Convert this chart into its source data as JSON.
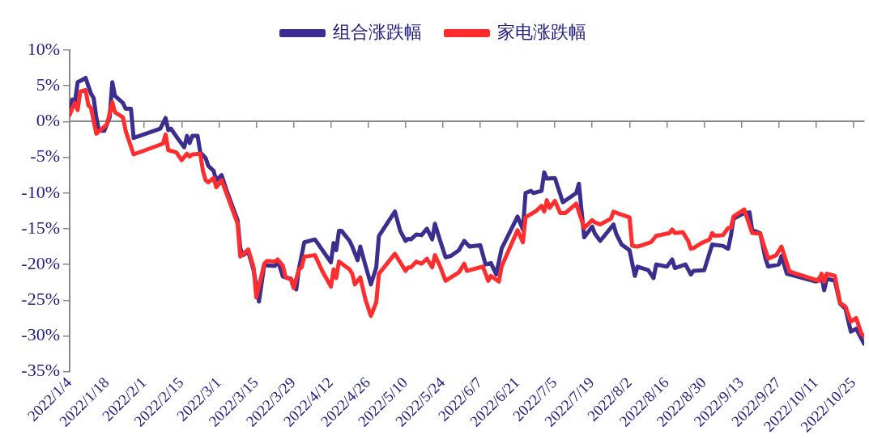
{
  "chart_data": {
    "type": "line",
    "legend": "top",
    "marker": "none",
    "line_style": "solid",
    "xlim": [
      "2022-01-04",
      "2022-10-29"
    ],
    "xticks": [
      {
        "value": "2022-01-04",
        "label": "2022/1/4"
      },
      {
        "value": "2022-01-18",
        "label": "2022/1/18"
      },
      {
        "value": "2022-02-01",
        "label": "2022/2/1"
      },
      {
        "value": "2022-02-15",
        "label": "2022/2/15"
      },
      {
        "value": "2022-03-01",
        "label": "2022/3/1"
      },
      {
        "value": "2022-03-15",
        "label": "2022/3/15"
      },
      {
        "value": "2022-03-29",
        "label": "2022/3/29"
      },
      {
        "value": "2022-04-12",
        "label": "2022/4/12"
      },
      {
        "value": "2022-04-26",
        "label": "2022/4/26"
      },
      {
        "value": "2022-05-10",
        "label": "2022/5/10"
      },
      {
        "value": "2022-05-24",
        "label": "2022/5/24"
      },
      {
        "value": "2022-06-07",
        "label": "2022/6/7"
      },
      {
        "value": "2022-06-21",
        "label": "2022/6/21"
      },
      {
        "value": "2022-07-05",
        "label": "2022/7/5"
      },
      {
        "value": "2022-07-19",
        "label": "2022/7/19"
      },
      {
        "value": "2022-08-02",
        "label": "2022/8/2"
      },
      {
        "value": "2022-08-16",
        "label": "2022/8/16"
      },
      {
        "value": "2022-08-30",
        "label": "2022/8/30"
      },
      {
        "value": "2022-09-13",
        "label": "2022/9/13"
      },
      {
        "value": "2022-09-27",
        "label": "2022/9/27"
      },
      {
        "value": "2022-10-11",
        "label": "2022/10/11"
      },
      {
        "value": "2022-10-25",
        "label": "2022/10/25"
      }
    ],
    "ylim": [
      -35,
      10
    ],
    "yticks": [
      {
        "value": -35,
        "label": "-35%"
      },
      {
        "value": -30,
        "label": "-30%"
      },
      {
        "value": -25,
        "label": "-25%"
      },
      {
        "value": -20,
        "label": "-20%"
      },
      {
        "value": -15,
        "label": "-15%"
      },
      {
        "value": -10,
        "label": "-10%"
      },
      {
        "value": -5,
        "label": "-5%"
      },
      {
        "value": 0,
        "label": "0%"
      },
      {
        "value": 5,
        "label": "5%"
      },
      {
        "value": 10,
        "label": "10%"
      }
    ],
    "series": [
      {
        "name": "组合涨跌幅",
        "color": "#3b2e8f",
        "x": [
          "2022-01-04",
          "2022-01-05",
          "2022-01-06",
          "2022-01-07",
          "2022-01-10",
          "2022-01-12",
          "2022-01-13",
          "2022-01-14",
          "2022-01-15",
          "2022-01-17",
          "2022-01-19",
          "2022-01-20",
          "2022-01-21",
          "2022-01-24",
          "2022-01-25",
          "2022-01-27",
          "2022-01-28",
          "2022-02-07",
          "2022-02-09",
          "2022-02-10",
          "2022-02-11",
          "2022-02-14",
          "2022-02-16",
          "2022-02-17",
          "2022-02-18",
          "2022-02-19",
          "2022-02-21",
          "2022-02-22",
          "2022-02-24",
          "2022-02-25",
          "2022-02-27",
          "2022-02-28",
          "2022-03-02",
          "2022-03-04",
          "2022-03-08",
          "2022-03-09",
          "2022-03-10",
          "2022-03-12",
          "2022-03-14",
          "2022-03-16",
          "2022-03-18",
          "2022-03-22",
          "2022-03-23",
          "2022-03-25",
          "2022-03-28",
          "2022-03-30",
          "2022-03-31",
          "2022-04-02",
          "2022-04-06",
          "2022-04-12",
          "2022-04-13",
          "2022-04-14",
          "2022-04-15",
          "2022-04-16",
          "2022-04-19",
          "2022-04-20",
          "2022-04-22",
          "2022-04-23",
          "2022-04-25",
          "2022-04-27",
          "2022-04-29",
          "2022-04-30",
          "2022-05-06",
          "2022-05-08",
          "2022-05-10",
          "2022-05-11",
          "2022-05-12",
          "2022-05-14",
          "2022-05-16",
          "2022-05-18",
          "2022-05-20",
          "2022-05-21",
          "2022-05-23",
          "2022-05-25",
          "2022-05-27",
          "2022-05-30",
          "2022-06-01",
          "2022-06-03",
          "2022-06-07",
          "2022-06-09",
          "2022-06-11",
          "2022-06-13",
          "2022-06-15",
          "2022-06-21",
          "2022-06-23",
          "2022-06-24",
          "2022-06-26",
          "2022-06-27",
          "2022-06-30",
          "2022-07-01",
          "2022-07-02",
          "2022-07-05",
          "2022-07-08",
          "2022-07-13",
          "2022-07-14",
          "2022-07-16",
          "2022-07-19",
          "2022-07-20",
          "2022-07-22",
          "2022-07-27",
          "2022-07-28",
          "2022-07-30",
          "2022-08-02",
          "2022-08-04",
          "2022-08-05",
          "2022-08-09",
          "2022-08-11",
          "2022-08-12",
          "2022-08-16",
          "2022-08-18",
          "2022-08-19",
          "2022-08-23",
          "2022-08-25",
          "2022-08-26",
          "2022-08-30",
          "2022-09-02",
          "2022-09-06",
          "2022-09-08",
          "2022-09-09",
          "2022-09-10",
          "2022-09-14",
          "2022-09-16",
          "2022-09-17",
          "2022-09-20",
          "2022-09-22",
          "2022-09-23",
          "2022-09-27",
          "2022-09-28",
          "2022-09-30",
          "2022-10-11",
          "2022-10-13",
          "2022-10-14",
          "2022-10-15",
          "2022-10-18",
          "2022-10-20",
          "2022-10-22",
          "2022-10-24",
          "2022-10-26",
          "2022-10-28",
          "2022-10-29"
        ],
        "values": [
          1.1,
          3.1,
          2.8,
          5.5,
          6.1,
          3.9,
          3.3,
          0.6,
          -1.3,
          -1.3,
          0.6,
          5.5,
          3.6,
          2.6,
          1.8,
          1.8,
          -2.3,
          -1.0,
          0.5,
          -1.2,
          -1.0,
          -2.6,
          -3.6,
          -2.0,
          -3.0,
          -2.0,
          -2.0,
          -4.3,
          -5.1,
          -6.2,
          -6.9,
          -8.2,
          -7.5,
          -9.8,
          -13.8,
          -17.7,
          -18.7,
          -18.2,
          -20.8,
          -25.2,
          -20.1,
          -20.2,
          -19.4,
          -21.7,
          -22.0,
          -23.5,
          -20.6,
          -16.9,
          -16.5,
          -19.7,
          -17.0,
          -18.0,
          -15.3,
          -15.3,
          -16.7,
          -17.5,
          -19.4,
          -17.5,
          -20.2,
          -22.8,
          -20.4,
          -16.0,
          -12.6,
          -15.3,
          -16.7,
          -16.4,
          -16.5,
          -15.8,
          -15.9,
          -15.0,
          -16.5,
          -14.3,
          -16.7,
          -19.0,
          -18.8,
          -18.0,
          -16.7,
          -17.5,
          -17.3,
          -20.0,
          -19.8,
          -21.4,
          -17.8,
          -13.3,
          -15.1,
          -10.0,
          -9.7,
          -10.0,
          -9.7,
          -7.1,
          -8.0,
          -7.9,
          -11.3,
          -10.0,
          -8.7,
          -16.2,
          -14.7,
          -15.7,
          -16.7,
          -14.4,
          -15.7,
          -17.2,
          -18.0,
          -21.6,
          -20.3,
          -20.8,
          -21.9,
          -20.0,
          -20.3,
          -19.3,
          -20.5,
          -20.0,
          -21.4,
          -20.9,
          -20.8,
          -17.2,
          -17.4,
          -17.8,
          -16.0,
          -13.6,
          -12.8,
          -12.7,
          -15.2,
          -15.6,
          -19.2,
          -20.3,
          -20.0,
          -18.8,
          -21.3,
          -22.4,
          -21.6,
          -23.6,
          -22.0,
          -22.3,
          -25.5,
          -26.2,
          -29.4,
          -29.0,
          -30.4,
          -31.1
        ]
      },
      {
        "name": "家电涨跌幅",
        "color": "#ff2d2d",
        "x": [
          "2022-01-04",
          "2022-01-05",
          "2022-01-06",
          "2022-01-07",
          "2022-01-08",
          "2022-01-10",
          "2022-01-11",
          "2022-01-12",
          "2022-01-14",
          "2022-01-18",
          "2022-01-20",
          "2022-01-21",
          "2022-01-24",
          "2022-01-25",
          "2022-01-28",
          "2022-02-08",
          "2022-02-09",
          "2022-02-10",
          "2022-02-13",
          "2022-02-15",
          "2022-02-17",
          "2022-02-18",
          "2022-02-19",
          "2022-02-22",
          "2022-02-23",
          "2022-02-24",
          "2022-02-25",
          "2022-02-27",
          "2022-02-28",
          "2022-03-02",
          "2022-03-08",
          "2022-03-09",
          "2022-03-12",
          "2022-03-14",
          "2022-03-15",
          "2022-03-18",
          "2022-03-19",
          "2022-03-22",
          "2022-03-23",
          "2022-03-25",
          "2022-03-26",
          "2022-03-28",
          "2022-03-29",
          "2022-03-31",
          "2022-04-01",
          "2022-04-02",
          "2022-04-06",
          "2022-04-09",
          "2022-04-12",
          "2022-04-13",
          "2022-04-14",
          "2022-04-15",
          "2022-04-19",
          "2022-04-20",
          "2022-04-21",
          "2022-04-23",
          "2022-04-25",
          "2022-04-27",
          "2022-04-29",
          "2022-04-30",
          "2022-05-06",
          "2022-05-08",
          "2022-05-10",
          "2022-05-11",
          "2022-05-12",
          "2022-05-14",
          "2022-05-16",
          "2022-05-18",
          "2022-05-20",
          "2022-05-21",
          "2022-05-23",
          "2022-05-25",
          "2022-05-27",
          "2022-05-30",
          "2022-06-01",
          "2022-06-02",
          "2022-06-08",
          "2022-06-10",
          "2022-06-11",
          "2022-06-14",
          "2022-06-15",
          "2022-06-21",
          "2022-06-23",
          "2022-06-24",
          "2022-06-28",
          "2022-06-30",
          "2022-07-01",
          "2022-07-02",
          "2022-07-03",
          "2022-07-05",
          "2022-07-07",
          "2022-07-09",
          "2022-07-13",
          "2022-07-16",
          "2022-07-19",
          "2022-07-20",
          "2022-07-22",
          "2022-07-26",
          "2022-07-27",
          "2022-07-29",
          "2022-08-02",
          "2022-08-03",
          "2022-08-05",
          "2022-08-10",
          "2022-08-12",
          "2022-08-17",
          "2022-08-18",
          "2022-08-19",
          "2022-08-22",
          "2022-08-24",
          "2022-08-25",
          "2022-08-26",
          "2022-08-29",
          "2022-09-01",
          "2022-09-02",
          "2022-09-03",
          "2022-09-06",
          "2022-09-08",
          "2022-09-09",
          "2022-09-10",
          "2022-09-14",
          "2022-09-17",
          "2022-09-20",
          "2022-09-23",
          "2022-09-26",
          "2022-09-28",
          "2022-10-01",
          "2022-10-12",
          "2022-10-13",
          "2022-10-14",
          "2022-10-15",
          "2022-10-18",
          "2022-10-20",
          "2022-10-22",
          "2022-10-24",
          "2022-10-26",
          "2022-10-28",
          "2022-10-29"
        ],
        "values": [
          0.9,
          1.9,
          2.6,
          1.6,
          4.2,
          4.4,
          2.3,
          1.9,
          -1.7,
          -0.4,
          2.7,
          1.3,
          0.6,
          -1.3,
          -4.6,
          -3.1,
          -1.8,
          -4.0,
          -4.3,
          -5.4,
          -4.5,
          -4.9,
          -4.6,
          -4.5,
          -6.9,
          -8.2,
          -8.5,
          -7.9,
          -9.2,
          -8.2,
          -14.3,
          -18.9,
          -17.9,
          -20.4,
          -24.6,
          -19.9,
          -19.5,
          -19.6,
          -19.3,
          -20.2,
          -21.8,
          -22.1,
          -23.3,
          -20.7,
          -20.4,
          -18.9,
          -18.7,
          -21.1,
          -23.1,
          -20.7,
          -21.9,
          -19.6,
          -20.7,
          -21.3,
          -22.8,
          -21.8,
          -25.0,
          -27.2,
          -25.3,
          -21.3,
          -18.5,
          -19.7,
          -20.9,
          -20.4,
          -20.4,
          -19.6,
          -19.9,
          -19.2,
          -20.4,
          -18.7,
          -20.3,
          -22.3,
          -21.8,
          -21.1,
          -19.9,
          -20.9,
          -20.3,
          -22.3,
          -21.6,
          -22.4,
          -20.3,
          -15.2,
          -16.9,
          -13.4,
          -12.5,
          -11.8,
          -12.6,
          -11.0,
          -12.1,
          -11.1,
          -12.8,
          -12.8,
          -11.5,
          -14.9,
          -13.8,
          -14.1,
          -14.4,
          -13.6,
          -12.6,
          -12.9,
          -13.4,
          -17.4,
          -17.5,
          -16.9,
          -16.0,
          -15.6,
          -15.1,
          -15.6,
          -15.5,
          -16.7,
          -17.8,
          -17.7,
          -17.0,
          -16.5,
          -15.6,
          -16.0,
          -15.9,
          -14.9,
          -14.9,
          -13.3,
          -12.3,
          -15.6,
          -15.7,
          -19.2,
          -18.7,
          -17.5,
          -21.0,
          -22.3,
          -21.3,
          -22.4,
          -21.3,
          -21.6,
          -25.4,
          -25.9,
          -28.0,
          -27.5,
          -29.7,
          -30.0
        ]
      }
    ]
  }
}
